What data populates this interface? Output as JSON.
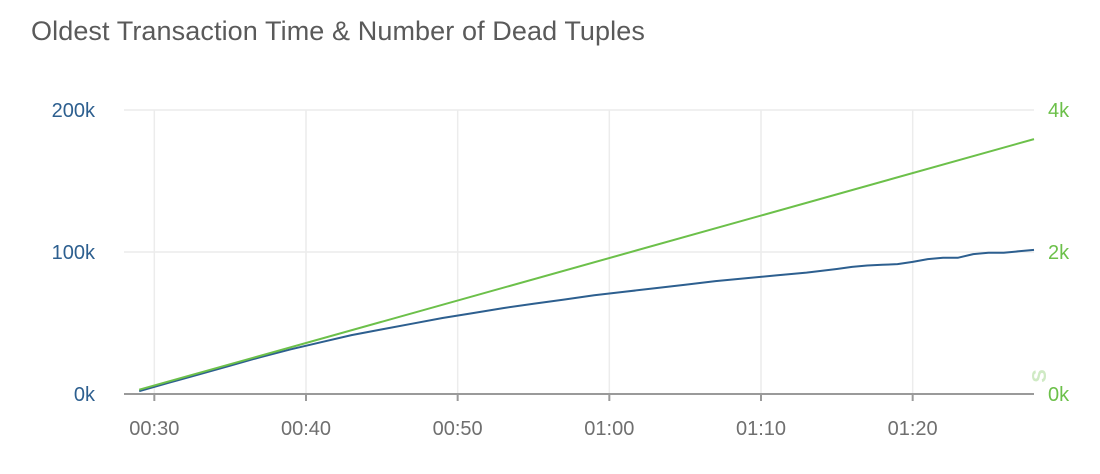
{
  "chart_data": {
    "type": "line",
    "title": "Oldest Transaction Time & Number of Dead Tuples",
    "x_unit": "minutes",
    "x": [
      29,
      31,
      33,
      35,
      37,
      39,
      41,
      43,
      45,
      47,
      49,
      51,
      53,
      55,
      57,
      59,
      61,
      63,
      65,
      67,
      69,
      71,
      73,
      75,
      76,
      77,
      78,
      79,
      80,
      81,
      82,
      83,
      84,
      85,
      86,
      87,
      88
    ],
    "xlim": [
      28,
      88
    ],
    "xticks": [
      30,
      40,
      50,
      60,
      70,
      80
    ],
    "xtick_labels": [
      "00:30",
      "00:40",
      "00:50",
      "01:00",
      "01:10",
      "01:20"
    ],
    "y_left": {
      "ylim": [
        0,
        200000
      ],
      "ticks": [
        0,
        100000,
        200000
      ],
      "tick_labels": [
        "0k",
        "100k",
        "200k"
      ],
      "color": "#2d5f8f"
    },
    "y_right": {
      "ylim": [
        0,
        4000
      ],
      "ticks": [
        0,
        2000,
        4000
      ],
      "tick_labels": [
        "0k",
        "2k",
        "4k"
      ],
      "color": "#6cc04a",
      "label": "S"
    },
    "grid": true,
    "series": [
      {
        "axis": "left",
        "color": "#2d5f8f",
        "values": [
          2000,
          8000,
          14000,
          20000,
          26000,
          31500,
          36500,
          41500,
          45500,
          49500,
          53500,
          57000,
          60500,
          63500,
          66500,
          69500,
          72000,
          74500,
          77000,
          79500,
          81500,
          83500,
          85500,
          88000,
          89500,
          90500,
          91000,
          91500,
          93000,
          95000,
          96000,
          96000,
          98500,
          99500,
          99500,
          100500,
          101500
        ]
      },
      {
        "axis": "right",
        "color": "#6cc04a",
        "x": [
          29,
          88
        ],
        "values": [
          60,
          3590
        ]
      }
    ]
  }
}
